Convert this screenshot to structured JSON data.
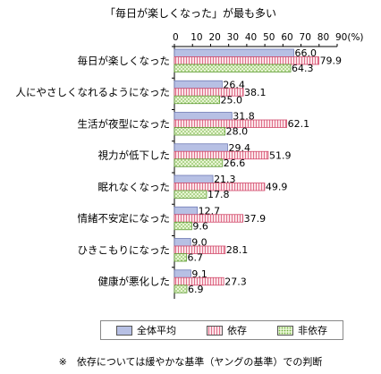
{
  "chart_data": {
    "type": "bar",
    "orientation": "horizontal",
    "title": "「毎日が楽しくなった」が最も多い",
    "categories": [
      "毎日が楽しくなった",
      "人にやさしくなれるようになった",
      "生活が夜型になった",
      "視力が低下した",
      "眠れなくなった",
      "情緒不安定になった",
      "ひきこもりになった",
      "健康が悪化した"
    ],
    "series": [
      {
        "name": "全体平均",
        "values": [
          66.0,
          26.4,
          31.8,
          29.4,
          21.3,
          12.7,
          9.0,
          9.1
        ],
        "color": "#b7c0e4"
      },
      {
        "name": "依存",
        "values": [
          79.9,
          38.1,
          62.1,
          51.9,
          49.9,
          37.9,
          28.1,
          27.3
        ],
        "color": "#f5b6c4"
      },
      {
        "name": "非依存",
        "values": [
          64.3,
          25.0,
          28.0,
          26.6,
          17.8,
          9.6,
          6.7,
          6.9
        ],
        "color": "#c6e3a2"
      }
    ],
    "xlim": [
      0,
      90
    ],
    "xticks": [
      "0",
      "10",
      "20",
      "30",
      "40",
      "50",
      "60",
      "70",
      "80",
      "90(%)"
    ],
    "legend_position": "bottom",
    "grid": false,
    "note": "※　依存については緩やかな基準（ヤングの基準）での判断"
  }
}
